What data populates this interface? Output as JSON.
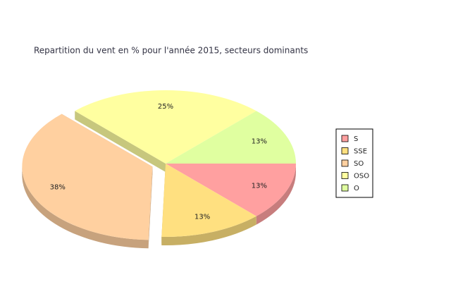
{
  "chart_data": {
    "type": "pie3d",
    "title": "Repartition du vent en % pour l'année 2015, secteurs dominants",
    "categories": [
      "S",
      "SSE",
      "SO",
      "OSO",
      "O"
    ],
    "values": [
      13,
      13,
      38,
      25,
      13
    ],
    "value_labels": [
      "13%",
      "13%",
      "38%",
      "25%",
      "13%"
    ],
    "colors": [
      "#ffa0a0",
      "#ffe080",
      "#ffd0a0",
      "#ffffa0",
      "#e0ffa0"
    ],
    "explode": [
      2
    ],
    "legend": "right"
  }
}
